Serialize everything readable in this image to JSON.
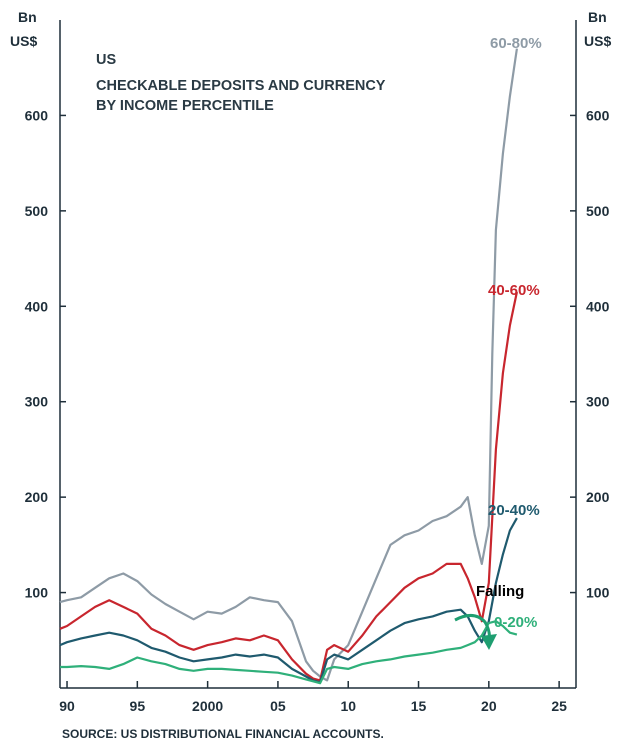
{
  "chart_data": {
    "type": "line",
    "title": "US",
    "subtitle": "CHECKABLE DEPOSITS AND CURRENCY BY INCOME PERCENTILE",
    "subtitle_lines": [
      "CHECKABLE DEPOSITS AND CURRENCY",
      "BY INCOME PERCENTILE"
    ],
    "ylabel_left": [
      "Bn",
      "US$"
    ],
    "ylabel_right": [
      "Bn",
      "US$"
    ],
    "ylim": [
      0,
      700
    ],
    "yticks": [
      100,
      200,
      300,
      400,
      500,
      600
    ],
    "ytick_labels": [
      "100",
      "200",
      "300",
      "400",
      "500",
      "600"
    ],
    "xlim": [
      1989.5,
      2026.2
    ],
    "xticks": [
      1990,
      1995,
      2000,
      2005,
      2010,
      2015,
      2020,
      2025
    ],
    "xtick_labels": [
      "90",
      "95",
      "2000",
      "05",
      "10",
      "15",
      "20",
      "25"
    ],
    "source": "SOURCE: US DISTRIBUTIONAL FINANCIAL ACCOUNTS.",
    "annotation": {
      "text": "Falling",
      "color": "#1e9e70"
    },
    "grid": false,
    "series": [
      {
        "name": "60-80%",
        "color": "#8e9ba6",
        "x": [
          1989.5,
          1990,
          1991,
          1992,
          1993,
          1994,
          1995,
          1996,
          1997,
          1998,
          1999,
          2000,
          2001,
          2002,
          2003,
          2004,
          2005,
          2006,
          2007,
          2007.5,
          2008,
          2008.5,
          2009,
          2010,
          2011,
          2012,
          2013,
          2014,
          2015,
          2016,
          2017,
          2018,
          2018.5,
          2019,
          2019.5,
          2020,
          2020.25,
          2020.5,
          2021,
          2021.5,
          2022
        ],
        "y": [
          90,
          92,
          95,
          105,
          115,
          120,
          112,
          98,
          88,
          80,
          72,
          80,
          78,
          85,
          95,
          92,
          90,
          70,
          28,
          18,
          12,
          8,
          30,
          45,
          80,
          115,
          150,
          160,
          165,
          175,
          180,
          190,
          200,
          160,
          130,
          170,
          350,
          480,
          560,
          620,
          670
        ]
      },
      {
        "name": "40-60%",
        "color": "#c8262e",
        "x": [
          1989.5,
          1990,
          1991,
          1992,
          1993,
          1994,
          1995,
          1996,
          1997,
          1998,
          1999,
          2000,
          2001,
          2002,
          2003,
          2004,
          2005,
          2006,
          2007,
          2007.5,
          2008,
          2008.5,
          2009,
          2010,
          2011,
          2012,
          2013,
          2014,
          2015,
          2016,
          2017,
          2018,
          2018.5,
          2019,
          2019.5,
          2020,
          2020.5,
          2021,
          2021.5,
          2022
        ],
        "y": [
          62,
          65,
          75,
          85,
          92,
          85,
          78,
          62,
          55,
          45,
          40,
          45,
          48,
          52,
          50,
          55,
          50,
          30,
          15,
          10,
          8,
          40,
          45,
          38,
          55,
          75,
          90,
          105,
          115,
          120,
          130,
          130,
          115,
          95,
          70,
          110,
          250,
          330,
          380,
          415
        ]
      },
      {
        "name": "20-40%",
        "color": "#1f5a6e",
        "x": [
          1989.5,
          1990,
          1991,
          1992,
          1993,
          1994,
          1995,
          1996,
          1997,
          1998,
          1999,
          2000,
          2001,
          2002,
          2003,
          2004,
          2005,
          2006,
          2007,
          2007.5,
          2008,
          2008.5,
          2009,
          2010,
          2011,
          2012,
          2013,
          2014,
          2015,
          2016,
          2017,
          2018,
          2018.5,
          2019,
          2019.5,
          2020,
          2020.5,
          2021,
          2021.5,
          2022
        ],
        "y": [
          45,
          48,
          52,
          55,
          58,
          55,
          50,
          42,
          38,
          32,
          28,
          30,
          32,
          35,
          33,
          35,
          32,
          20,
          12,
          8,
          6,
          30,
          35,
          30,
          40,
          50,
          60,
          68,
          72,
          75,
          80,
          82,
          75,
          60,
          48,
          70,
          110,
          140,
          165,
          178
        ]
      },
      {
        "name": "0-20%",
        "color": "#2fb07a",
        "x": [
          1989.5,
          1990,
          1991,
          1992,
          1993,
          1994,
          1995,
          1996,
          1997,
          1998,
          1999,
          2000,
          2001,
          2002,
          2003,
          2004,
          2005,
          2006,
          2007,
          2007.5,
          2008,
          2008.5,
          2009,
          2010,
          2011,
          2012,
          2013,
          2014,
          2015,
          2016,
          2017,
          2018,
          2018.5,
          2019,
          2019.5,
          2020,
          2020.5,
          2021,
          2021.5,
          2022
        ],
        "y": [
          22,
          22,
          23,
          22,
          20,
          25,
          32,
          28,
          25,
          20,
          18,
          20,
          20,
          19,
          18,
          17,
          16,
          13,
          9,
          7,
          5,
          20,
          22,
          20,
          25,
          28,
          30,
          33,
          35,
          37,
          40,
          42,
          45,
          48,
          55,
          68,
          70,
          65,
          58,
          56
        ]
      }
    ]
  }
}
